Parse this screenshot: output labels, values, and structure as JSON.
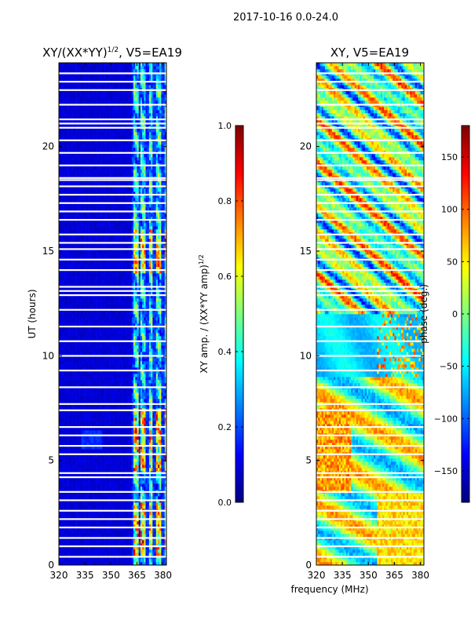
{
  "figure": {
    "suptitle": "2017-10-16 0.0-24.0",
    "xlabel": "frequency (MHz)"
  },
  "colors": {
    "jet": [
      "#00007f",
      "#0000ff",
      "#007fff",
      "#00ffff",
      "#7fff7f",
      "#ffff00",
      "#ff7f00",
      "#ff0000",
      "#7f0000"
    ]
  },
  "chart_data": [
    {
      "type": "heatmap",
      "title_main": "XY/(XX*YY)",
      "title_sup": "1/2",
      "title_rest": ", V5=EA19",
      "xlabel": "",
      "ylabel": "UT (hours)",
      "xlim": [
        320,
        382
      ],
      "ylim": [
        0,
        24
      ],
      "xticks": [
        "320",
        "335",
        "350",
        "365",
        "380"
      ],
      "xtick_values": [
        320,
        335,
        350,
        365,
        380
      ],
      "yticks": [
        "0",
        "5",
        "10",
        "15",
        "20"
      ],
      "ytick_values": [
        0,
        5,
        10,
        15,
        20
      ],
      "colorbar": {
        "label": "XY amp. / (XX*YY amp)",
        "label_sup": "1/2",
        "range": [
          0.0,
          1.0
        ],
        "ticks": [
          "0.0",
          "0.2",
          "0.4",
          "0.6",
          "0.8",
          "1.0"
        ],
        "tick_values": [
          0.0,
          0.2,
          0.4,
          0.6,
          0.8,
          1.0
        ]
      },
      "blank_rows_ut": [
        0.4,
        0.9,
        1.3,
        1.8,
        2.2,
        2.6,
        3.1,
        3.5,
        4.2,
        4.4,
        5.3,
        5.7,
        6.2,
        6.6,
        7.4,
        7.7,
        8.5,
        9.3,
        10.0,
        10.7,
        11.4,
        12.2,
        12.9,
        13.1,
        13.3,
        14.1,
        14.6,
        15.1,
        15.4,
        15.8,
        16.5,
        16.9,
        17.3,
        17.7,
        18.1,
        18.4,
        18.5,
        19.1,
        19.7,
        20.3,
        20.9,
        21.1,
        21.3,
        22.0,
        22.7,
        23.1,
        23.5
      ],
      "features": {
        "low_floor_frequency_mhz": [
          320,
          362
        ],
        "band_edges_mhz": [
          362.5,
          366.5,
          371.0,
          375.0,
          380.0
        ],
        "high_amplitude_ut_ranges": [
          [
            0.5,
            3.0
          ],
          [
            4.5,
            7.5
          ],
          [
            14.0,
            16.0
          ]
        ]
      }
    },
    {
      "type": "heatmap",
      "title": "XY, V5=EA19",
      "xlabel": "",
      "ylabel": "",
      "xlim": [
        320,
        382
      ],
      "ylim": [
        0,
        24
      ],
      "xticks": [
        "320",
        "335",
        "350",
        "365",
        "380"
      ],
      "xtick_values": [
        320,
        335,
        350,
        365,
        380
      ],
      "yticks": [
        "0",
        "5",
        "10",
        "15",
        "20"
      ],
      "ytick_values": [
        0,
        5,
        10,
        15,
        20
      ],
      "colorbar": {
        "label": "phase (deg.)",
        "range": [
          -180,
          180
        ],
        "ticks": [
          "−150",
          "−100",
          "−50",
          "0",
          "50",
          "100",
          "150"
        ],
        "tick_values": [
          -150,
          -100,
          -50,
          0,
          50,
          100,
          150
        ]
      },
      "blank_rows_ut": [
        0.4,
        0.9,
        1.3,
        1.8,
        2.2,
        2.6,
        3.1,
        3.5,
        4.2,
        4.4,
        5.3,
        5.7,
        6.2,
        6.6,
        7.4,
        7.7,
        8.5,
        9.3,
        10.0,
        10.7,
        11.4,
        12.2,
        12.9,
        13.1,
        13.3,
        14.1,
        14.6,
        15.1,
        15.4,
        15.8,
        16.5,
        16.9,
        17.3,
        17.7,
        18.1,
        18.4,
        18.5,
        19.1,
        19.7,
        20.3,
        20.9,
        21.1,
        21.3,
        22.0,
        22.7,
        23.1,
        23.5
      ],
      "features": {
        "noisy_phase_ut_ranges": [
          [
            0.5,
            9.0
          ],
          [
            12.0,
            24.0
          ]
        ],
        "smooth_phase_ut_range": [
          9.0,
          12.0
        ]
      }
    }
  ]
}
